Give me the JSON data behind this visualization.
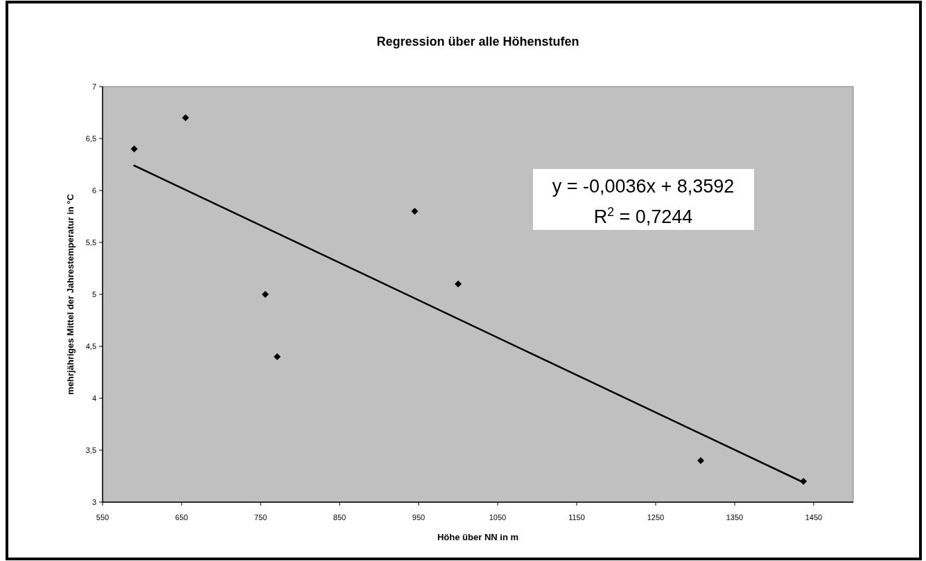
{
  "chart_data": {
    "type": "scatter",
    "title": "Regression über alle Höhenstufen",
    "xlabel": "Höhe über NN in m",
    "ylabel": "mehrjähriges Mittel der Jahrestemperatur in °C",
    "series": [
      {
        "color": "#000000",
        "marker": "diamond",
        "x": [
          590,
          655,
          756,
          771,
          945,
          1000,
          1307,
          1437
        ],
        "values": [
          6.4,
          6.7,
          5.0,
          4.4,
          5.8,
          5.1,
          3.4,
          3.2
        ]
      },
      {
        "type": "line",
        "color": "#000000",
        "marker": "none",
        "x": [
          590,
          1437
        ],
        "values": [
          6.24,
          3.19
        ]
      }
    ],
    "xlim": [
      550,
      1500
    ],
    "xticks": [
      550,
      650,
      750,
      850,
      950,
      1050,
      1150,
      1250,
      1350,
      1450
    ],
    "ylim": [
      3,
      7
    ],
    "yticks": [
      3,
      {
        "value": 3.5,
        "label": "3,5"
      },
      4,
      {
        "value": 4.5,
        "label": "4,5"
      },
      5,
      {
        "value": 5.5,
        "label": "5,5"
      },
      6,
      {
        "value": 6.5,
        "label": "6,5"
      },
      7
    ],
    "annotations": [
      "y = -0,0036x + 8,3592",
      "R$^{2}$ = 0,7244"
    ],
    "grid": false
  }
}
